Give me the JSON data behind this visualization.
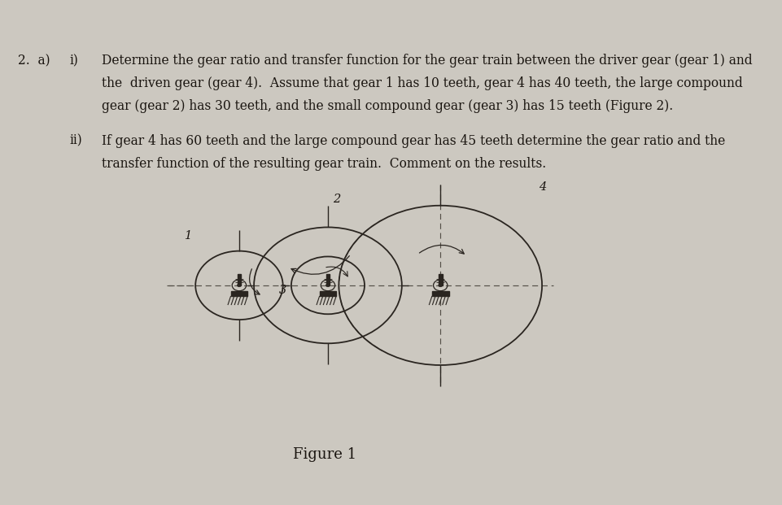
{
  "bg_color": "#ccc8c0",
  "text_color": "#1a1510",
  "part_i_text_line1": "Determine the gear ratio and transfer function for the gear train between the driver gear (gear 1) and",
  "part_i_text_line2": "the  driven gear (gear 4).  Assume that gear 1 has 10 teeth, gear 4 has 40 teeth, the large compound",
  "part_i_text_line3": "gear (gear 2) has 30 teeth, and the small compound gear (gear 3) has 15 teeth (Figure 2).",
  "part_ii_text_line1": "If gear 4 has 60 teeth and the large compound gear has 45 teeth determine the gear ratio and the",
  "part_ii_text_line2": "transfer function of the resulting gear train.  Comment on the results.",
  "figure_caption": "Figure 1",
  "lc": "#2a2520",
  "dc": "#555048",
  "font_size_body": 11.2,
  "font_size_caption": 13,
  "g1x": 0.372,
  "g1y": 0.435,
  "g1r": 0.068,
  "g2x": 0.51,
  "g2y": 0.435,
  "g2r": 0.115,
  "g3r": 0.057,
  "g4x": 0.685,
  "g4y": 0.435,
  "g4r": 0.158
}
